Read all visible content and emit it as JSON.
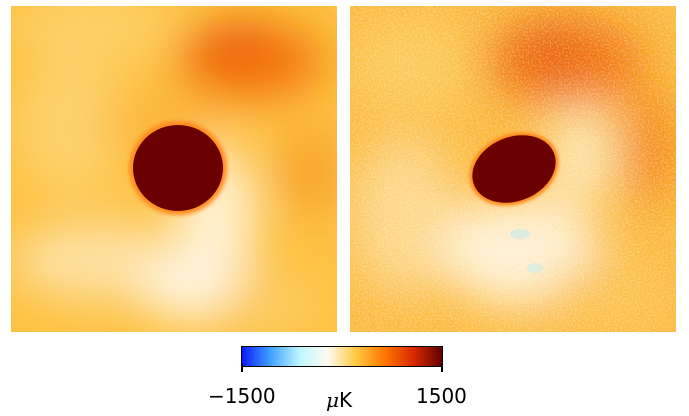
{
  "colorbar": {
    "min_label": "−1500",
    "max_label": "1500",
    "unit_mu": "μ",
    "unit_k": "K",
    "colors": [
      "#0a1cff",
      "#3fa0ff",
      "#bff7ff",
      "#fffaf0",
      "#ffc840",
      "#ff7800",
      "#d82800",
      "#600000"
    ]
  },
  "panels": [
    {
      "name": "smoothed-map",
      "background": "#fdc142",
      "spot_color": "#6a0000"
    },
    {
      "name": "noisy-map",
      "background": "#fbba3e",
      "spot_color": "#6a0000"
    }
  ]
}
